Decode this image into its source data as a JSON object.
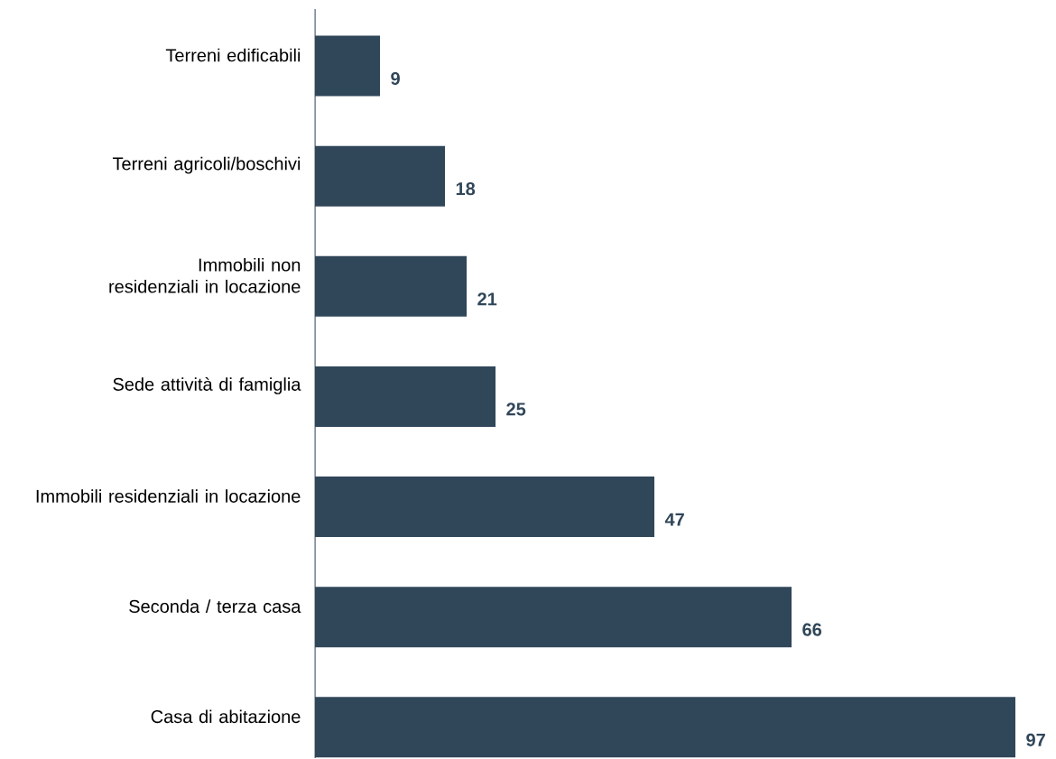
{
  "chart_data": {
    "type": "bar",
    "orientation": "horizontal",
    "categories": [
      "Terreni edificabili",
      "Terreni agricoli/boschivi",
      "Immobili non residenziali in locazione",
      "Sede attività di famiglia",
      "Immobili residenziali in locazione",
      "Seconda / terza casa",
      "Casa di abitazione"
    ],
    "values": [
      9,
      18,
      21,
      25,
      47,
      66,
      97
    ],
    "color": "#304659",
    "data_labels": true,
    "tick_labels": "y"
  }
}
